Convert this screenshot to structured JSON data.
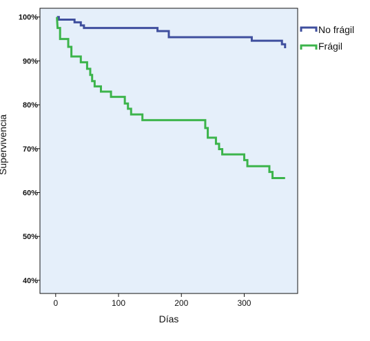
{
  "chart_data": {
    "type": "line",
    "style": "step",
    "xlabel": "Días",
    "ylabel": "Supervivencia",
    "xlim": [
      -25,
      385
    ],
    "ylim": [
      37,
      102
    ],
    "x_ticks": [
      0,
      100,
      200,
      300
    ],
    "y_ticks": [
      40,
      50,
      60,
      70,
      80,
      90,
      100
    ],
    "x_tick_labels": [
      "0",
      "100",
      "200",
      "300"
    ],
    "y_tick_labels": [
      "40%",
      "50%",
      "60%",
      "70%",
      "80%",
      "90%",
      "100%"
    ],
    "grid": false,
    "legend_position": "top-right, outside plot",
    "background_color": "#e5effa",
    "series": [
      {
        "name": "No frágil",
        "color": "#3f4f9e",
        "points": [
          [
            2,
            100
          ],
          [
            5,
            100
          ],
          [
            5,
            99.4
          ],
          [
            30,
            99.4
          ],
          [
            30,
            98.8
          ],
          [
            40,
            98.8
          ],
          [
            40,
            98.1
          ],
          [
            45,
            98.1
          ],
          [
            45,
            97.5
          ],
          [
            162,
            97.5
          ],
          [
            162,
            96.8
          ],
          [
            180,
            96.8
          ],
          [
            180,
            95.4
          ],
          [
            312,
            95.4
          ],
          [
            312,
            94.6
          ],
          [
            360,
            94.6
          ],
          [
            360,
            93.8
          ],
          [
            365,
            93.8
          ],
          [
            365,
            92.9
          ]
        ]
      },
      {
        "name": "Frágil",
        "color": "#3cb44b",
        "points": [
          [
            2,
            100
          ],
          [
            3,
            97.5
          ],
          [
            7,
            97.5
          ],
          [
            7,
            95
          ],
          [
            20,
            95
          ],
          [
            20,
            93.2
          ],
          [
            25,
            93.2
          ],
          [
            25,
            91
          ],
          [
            40,
            91
          ],
          [
            40,
            89.7
          ],
          [
            50,
            89.7
          ],
          [
            50,
            88.2
          ],
          [
            55,
            88.2
          ],
          [
            55,
            86.8
          ],
          [
            58,
            86.8
          ],
          [
            58,
            85.4
          ],
          [
            62,
            85.4
          ],
          [
            62,
            84.2
          ],
          [
            72,
            84.2
          ],
          [
            72,
            83
          ],
          [
            88,
            83
          ],
          [
            88,
            81.8
          ],
          [
            110,
            81.8
          ],
          [
            110,
            80.3
          ],
          [
            115,
            80.3
          ],
          [
            115,
            79.1
          ],
          [
            120,
            79.1
          ],
          [
            120,
            77.8
          ],
          [
            138,
            77.8
          ],
          [
            138,
            76.5
          ],
          [
            238,
            76.5
          ],
          [
            238,
            74.7
          ],
          [
            242,
            74.7
          ],
          [
            242,
            72.5
          ],
          [
            255,
            72.5
          ],
          [
            255,
            71.1
          ],
          [
            260,
            71.1
          ],
          [
            260,
            69.9
          ],
          [
            265,
            69.9
          ],
          [
            265,
            68.7
          ],
          [
            300,
            68.7
          ],
          [
            300,
            67.4
          ],
          [
            305,
            67.4
          ],
          [
            305,
            66
          ],
          [
            340,
            66
          ],
          [
            340,
            64.7
          ],
          [
            345,
            64.7
          ],
          [
            345,
            63.3
          ],
          [
            365,
            63.3
          ]
        ]
      }
    ]
  }
}
